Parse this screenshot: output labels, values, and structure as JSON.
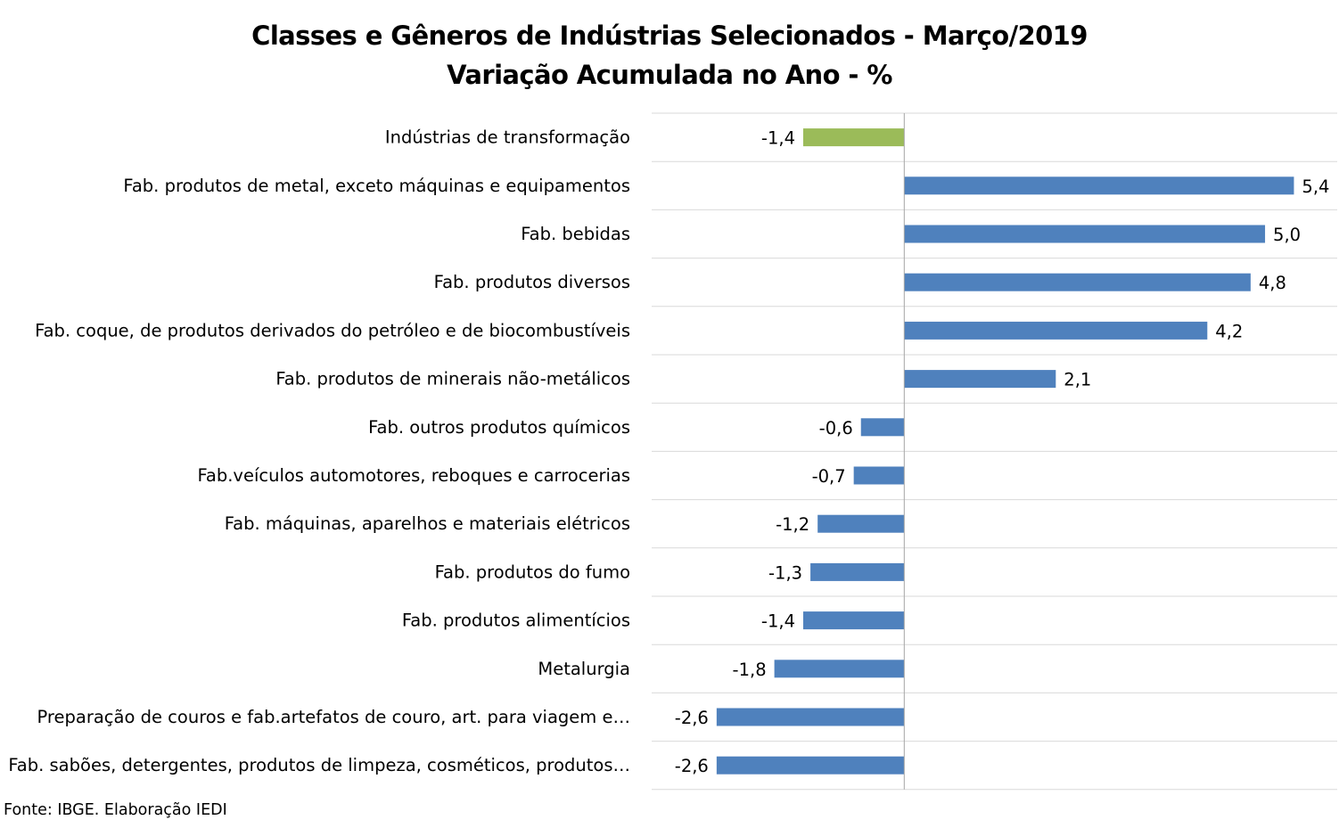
{
  "chart_data": {
    "type": "bar",
    "orientation": "horizontal",
    "title": "Classes e Gêneros de Indústrias Selecionados - Março/2019",
    "subtitle": "Variação Acumulada no Ano - %",
    "categories": [
      "Indústrias de transformação",
      "Fab. produtos de metal, exceto máquinas e equipamentos",
      "Fab. bebidas",
      "Fab. produtos diversos",
      "Fab. coque, de produtos derivados do petróleo e de biocombustíveis",
      "Fab. produtos de minerais não-metálicos",
      "Fab. outros produtos químicos",
      "Fab.veículos automotores, reboques e carrocerias",
      "Fab. máquinas, aparelhos e materiais elétricos",
      "Fab. produtos do fumo",
      "Fab. produtos alimentícios",
      "Metalurgia",
      "Preparação de couros e fab.artefatos de couro, art. para viagem e…",
      "Fab. sabões, detergentes, produtos de limpeza, cosméticos, produtos…"
    ],
    "values": [
      -1.4,
      5.4,
      5.0,
      4.8,
      4.2,
      2.1,
      -0.6,
      -0.7,
      -1.2,
      -1.3,
      -1.4,
      -1.8,
      -2.6,
      -2.6
    ],
    "data_labels": [
      "-1,4",
      "5,4",
      "5,0",
      "4,8",
      "4,2",
      "2,1",
      "-0,6",
      "-0,7",
      "-1,2",
      "-1,3",
      "-1,4",
      "-1,8",
      "-2,6",
      "-2,6"
    ],
    "highlight_index": 0,
    "colors": {
      "default": "#4f81bd",
      "highlight": "#9bbb59",
      "grid": "#d9d9d9",
      "axis": "#a6a6a6"
    },
    "xlim": [
      -3.5,
      6.0
    ],
    "gridlines": "horizontal category separators",
    "legend": "none"
  },
  "source": "Fonte: IBGE. Elaboração IEDI"
}
